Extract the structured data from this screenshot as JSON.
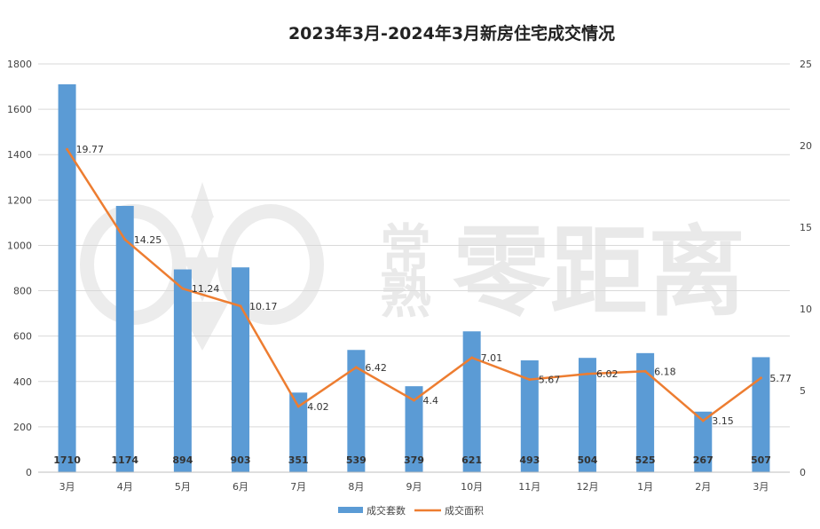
{
  "chart_data": {
    "type": "bar",
    "title": "2023年3月-2024年3月新房住宅成交情况",
    "categories": [
      "3月",
      "4月",
      "5月",
      "6月",
      "7月",
      "8月",
      "9月",
      "10月",
      "11月",
      "12月",
      "1月",
      "2月",
      "3月"
    ],
    "series": [
      {
        "name": "成交套数",
        "type": "bar",
        "axis": "left",
        "color": "#5b9bd5",
        "values": [
          1710,
          1174,
          894,
          903,
          351,
          539,
          379,
          621,
          493,
          504,
          525,
          267,
          507
        ]
      },
      {
        "name": "成交面积",
        "type": "line",
        "axis": "right",
        "color": "#ed7d31",
        "values": [
          19.77,
          14.25,
          11.24,
          10.17,
          4.02,
          6.42,
          4.4,
          7.01,
          5.67,
          6.02,
          6.18,
          3.15,
          5.77
        ]
      }
    ],
    "bar_labels": [
      "1710",
      "1174",
      "894",
      "903",
      "351",
      "539",
      "379",
      "621",
      "493",
      "504",
      "525",
      "267",
      "507"
    ],
    "line_labels": [
      "19.77",
      "14.25",
      "11.24",
      "10.17",
      "4.02",
      "6.42",
      "4.4",
      "7.01",
      "5.67",
      "6.02",
      "6.18",
      "3.15",
      "5.77"
    ],
    "y_left": {
      "min": 0,
      "max": 1800,
      "ticks": [
        "0",
        "200",
        "400",
        "600",
        "800",
        "1000",
        "1200",
        "1400",
        "1600",
        "1800"
      ]
    },
    "y_right": {
      "min": 0,
      "max": 25,
      "ticks": [
        "0",
        "5",
        "10",
        "15",
        "20",
        "25"
      ]
    },
    "grid": true,
    "legend_position": "bottom"
  },
  "watermark": {
    "char1": "常",
    "char2": "熟",
    "text": "零距离"
  }
}
